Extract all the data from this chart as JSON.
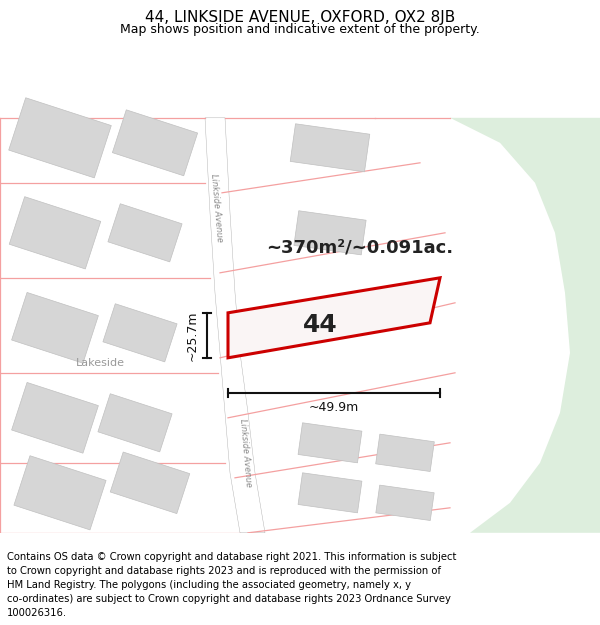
{
  "title_line1": "44, LINKSIDE AVENUE, OXFORD, OX2 8JB",
  "title_line2": "Map shows position and indicative extent of the property.",
  "footer_text": "Contains OS data © Crown copyright and database right 2021. This information is subject to Crown copyright and database rights 2023 and is reproduced with the permission of HM Land Registry. The polygons (including the associated geometry, namely x, y co-ordinates) are subject to Crown copyright and database rights 2023 Ordnance Survey 100026316.",
  "map_bg": "#f2f2f0",
  "road_color": "#ffffff",
  "building_fill": "#d6d6d6",
  "building_edge": "#c0c0c0",
  "property_fill": "#faf5f5",
  "property_edge": "#cc0000",
  "property_edge_width": 2.2,
  "other_property_edge": "#f4a0a0",
  "other_property_edge_width": 0.9,
  "green_area_fill": "#ddeedd",
  "annotation_color": "#111111",
  "title_fontsize": 11,
  "subtitle_fontsize": 9,
  "footer_fontsize": 7.2,
  "property_label": "44",
  "area_label": "~370m²/~0.091ac.",
  "dim1_label": "~25.7m",
  "dim2_label": "~49.9m",
  "road_label1": "Linkside Avenue",
  "road_label2": "Linkside Avenue",
  "street_label": "Lakeside"
}
